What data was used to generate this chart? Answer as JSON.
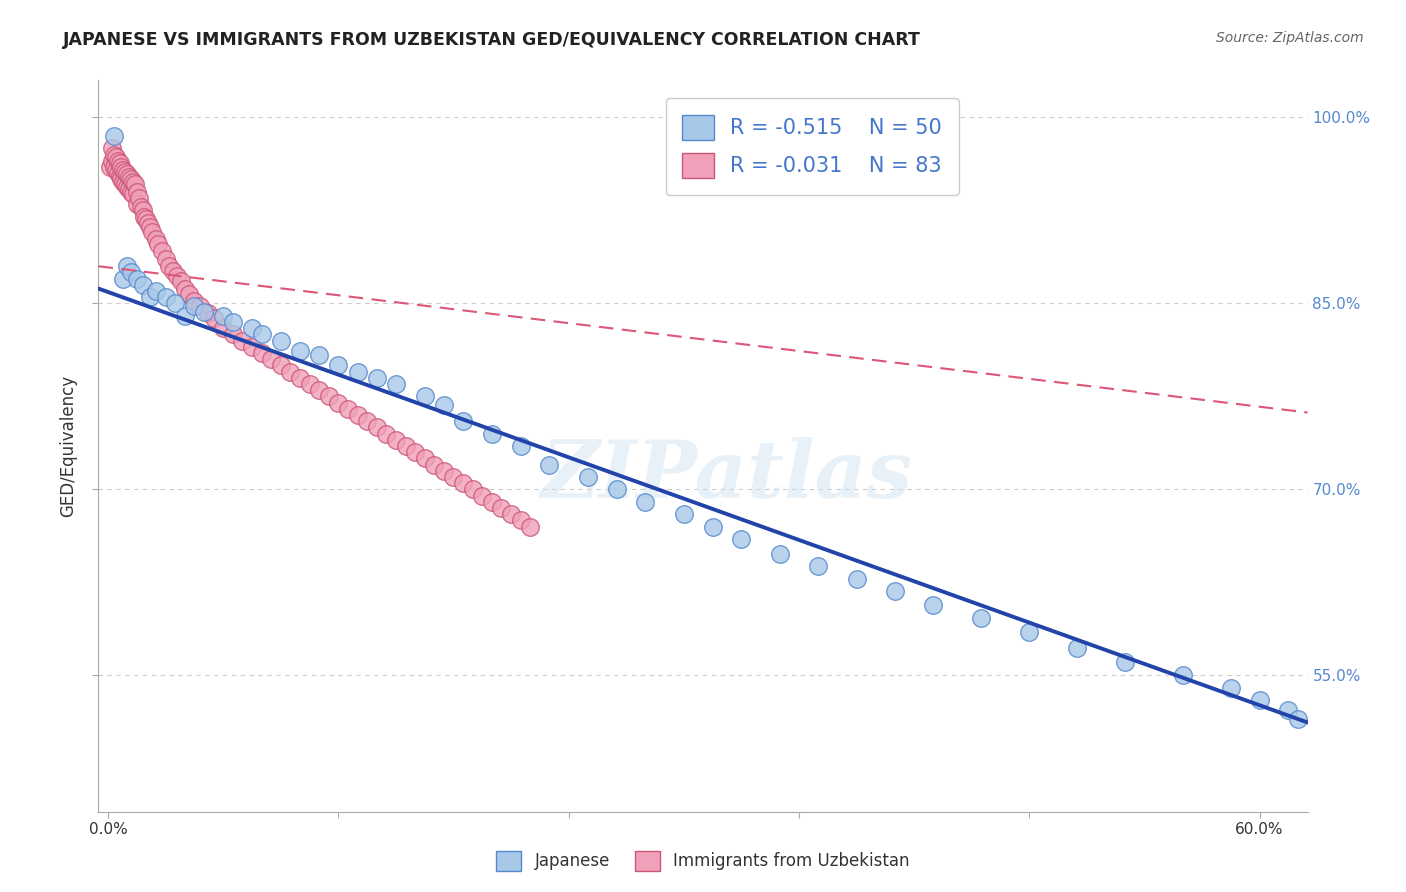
{
  "title": "JAPANESE VS IMMIGRANTS FROM UZBEKISTAN GED/EQUIVALENCY CORRELATION CHART",
  "source": "Source: ZipAtlas.com",
  "ylabel": "GED/Equivalency",
  "ylim": [
    0.44,
    1.03
  ],
  "xlim": [
    -0.005,
    0.625
  ],
  "yticks": [
    0.55,
    0.7,
    0.85,
    1.0
  ],
  "ytick_labels": [
    "55.0%",
    "70.0%",
    "85.0%",
    "100.0%"
  ],
  "xtick_labels": [
    "0.0%",
    "",
    "",
    "",
    "",
    "60.0%"
  ],
  "background_color": "#ffffff",
  "watermark": "ZIPatlas",
  "legend_R_japanese": "-0.515",
  "legend_N_japanese": "50",
  "legend_R_uzbekistan": "-0.031",
  "legend_N_uzbekistan": "83",
  "japanese_color": "#a8c8e8",
  "japanese_edge_color": "#5588cc",
  "uzbekistan_color": "#f0a0b8",
  "uzbekistan_edge_color": "#cc5577",
  "japanese_trendline_color": "#2244aa",
  "uzbekistan_trendline_color": "#dd5577",
  "japanese_points_x": [
    0.003,
    0.008,
    0.01,
    0.012,
    0.015,
    0.018,
    0.022,
    0.025,
    0.03,
    0.035,
    0.04,
    0.045,
    0.05,
    0.06,
    0.065,
    0.075,
    0.08,
    0.09,
    0.1,
    0.11,
    0.12,
    0.13,
    0.14,
    0.15,
    0.165,
    0.175,
    0.185,
    0.2,
    0.215,
    0.23,
    0.25,
    0.265,
    0.28,
    0.3,
    0.315,
    0.33,
    0.35,
    0.37,
    0.39,
    0.41,
    0.43,
    0.455,
    0.48,
    0.505,
    0.53,
    0.56,
    0.585,
    0.6,
    0.615,
    0.62
  ],
  "japanese_points_y": [
    0.985,
    0.87,
    0.88,
    0.875,
    0.87,
    0.865,
    0.855,
    0.86,
    0.855,
    0.85,
    0.84,
    0.848,
    0.843,
    0.84,
    0.835,
    0.83,
    0.825,
    0.82,
    0.812,
    0.808,
    0.8,
    0.795,
    0.79,
    0.785,
    0.775,
    0.768,
    0.755,
    0.745,
    0.735,
    0.72,
    0.71,
    0.7,
    0.69,
    0.68,
    0.67,
    0.66,
    0.648,
    0.638,
    0.628,
    0.618,
    0.607,
    0.596,
    0.585,
    0.572,
    0.561,
    0.55,
    0.54,
    0.53,
    0.522,
    0.515
  ],
  "uzbekistan_points_x": [
    0.001,
    0.002,
    0.002,
    0.003,
    0.003,
    0.004,
    0.004,
    0.005,
    0.005,
    0.006,
    0.006,
    0.007,
    0.007,
    0.008,
    0.008,
    0.009,
    0.009,
    0.01,
    0.01,
    0.011,
    0.011,
    0.012,
    0.012,
    0.013,
    0.013,
    0.014,
    0.015,
    0.015,
    0.016,
    0.017,
    0.018,
    0.019,
    0.02,
    0.021,
    0.022,
    0.023,
    0.025,
    0.026,
    0.028,
    0.03,
    0.032,
    0.034,
    0.036,
    0.038,
    0.04,
    0.042,
    0.045,
    0.048,
    0.052,
    0.055,
    0.06,
    0.065,
    0.07,
    0.075,
    0.08,
    0.085,
    0.09,
    0.095,
    0.1,
    0.105,
    0.11,
    0.115,
    0.12,
    0.125,
    0.13,
    0.135,
    0.14,
    0.145,
    0.15,
    0.155,
    0.16,
    0.165,
    0.17,
    0.175,
    0.18,
    0.185,
    0.19,
    0.195,
    0.2,
    0.205,
    0.21,
    0.215,
    0.22
  ],
  "uzbekistan_points_y": [
    0.96,
    0.975,
    0.965,
    0.97,
    0.96,
    0.968,
    0.958,
    0.965,
    0.955,
    0.963,
    0.953,
    0.96,
    0.95,
    0.958,
    0.948,
    0.956,
    0.946,
    0.954,
    0.944,
    0.952,
    0.942,
    0.95,
    0.94,
    0.948,
    0.938,
    0.946,
    0.94,
    0.93,
    0.935,
    0.928,
    0.925,
    0.92,
    0.918,
    0.915,
    0.912,
    0.908,
    0.902,
    0.898,
    0.892,
    0.886,
    0.88,
    0.876,
    0.872,
    0.868,
    0.862,
    0.858,
    0.852,
    0.848,
    0.842,
    0.838,
    0.83,
    0.825,
    0.82,
    0.815,
    0.81,
    0.805,
    0.8,
    0.795,
    0.79,
    0.785,
    0.78,
    0.775,
    0.77,
    0.765,
    0.76,
    0.755,
    0.75,
    0.745,
    0.74,
    0.735,
    0.73,
    0.725,
    0.72,
    0.715,
    0.71,
    0.705,
    0.7,
    0.695,
    0.69,
    0.685,
    0.68,
    0.675,
    0.67
  ],
  "japanese_trend_x": [
    -0.005,
    0.625
  ],
  "japanese_trend_y": [
    0.862,
    0.512
  ],
  "uzbekistan_trend_x": [
    -0.005,
    0.625
  ],
  "uzbekistan_trend_y": [
    0.88,
    0.762
  ]
}
